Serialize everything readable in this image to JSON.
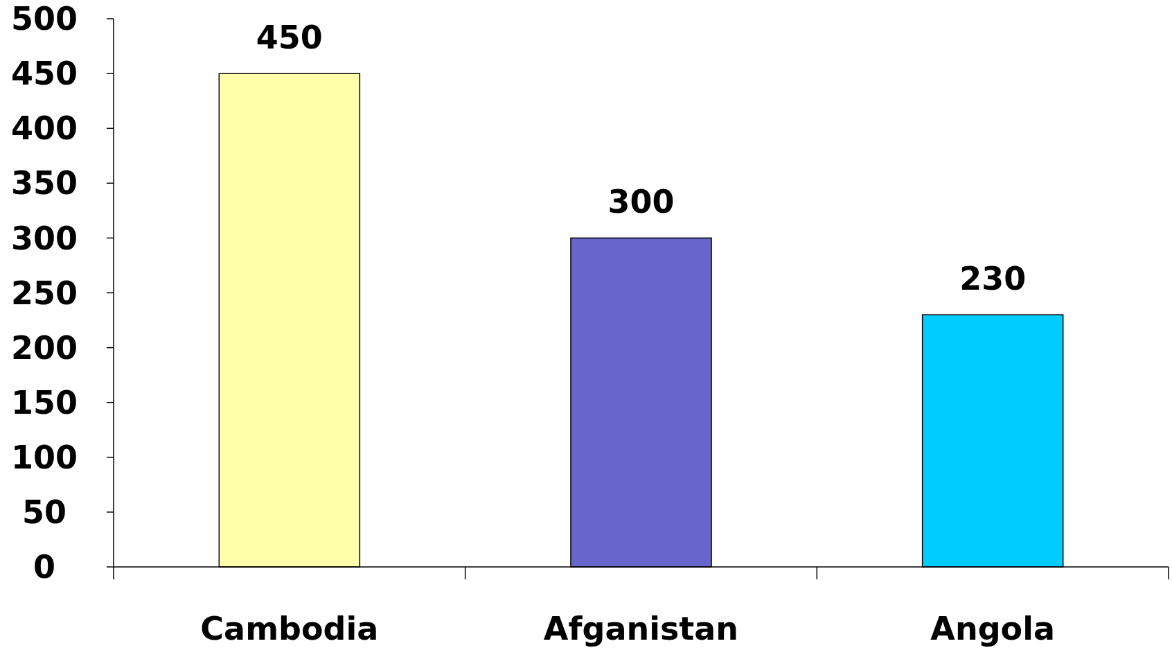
{
  "chart_data": {
    "type": "bar",
    "categories": [
      "Cambodia",
      "Afganistan",
      "Angola"
    ],
    "values": [
      450,
      300,
      230
    ],
    "colors": [
      "#ffffaa",
      "#6666cc",
      "#00ccff"
    ],
    "ylim": [
      0,
      500
    ],
    "yticks": [
      0,
      50,
      100,
      150,
      200,
      250,
      300,
      350,
      400,
      450,
      500
    ],
    "data_labels": true
  }
}
